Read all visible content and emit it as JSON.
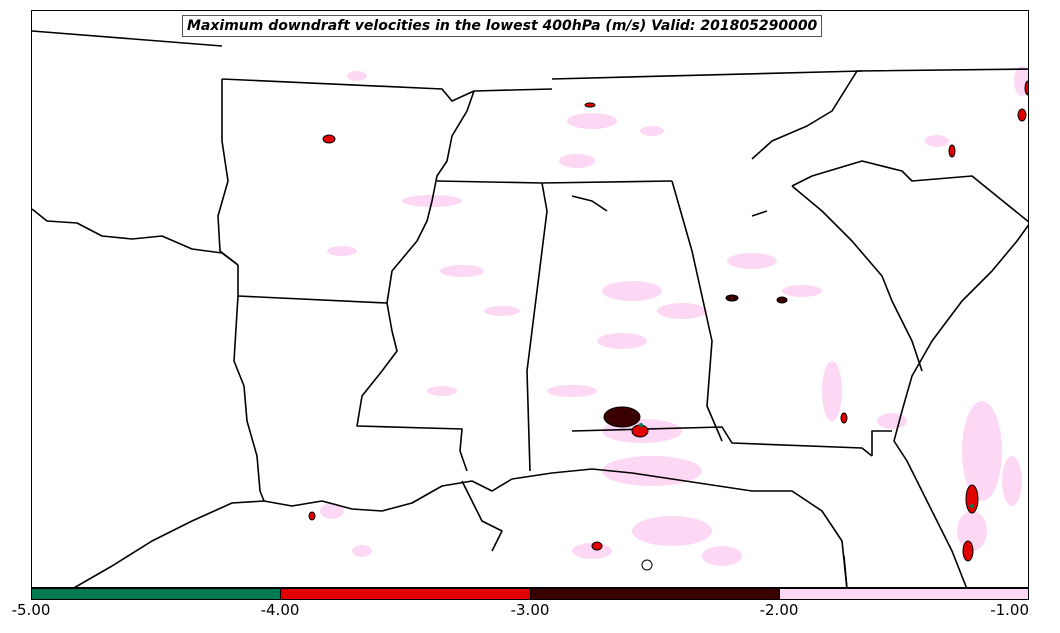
{
  "map": {
    "title": "Maximum downdraft velocities in the lowest 400hPa (m/s) Valid: 201805290000",
    "region": "Southeastern United States",
    "colorbar": {
      "ticks": [
        "-5.00",
        "-4.00",
        "-3.00",
        "-2.00",
        "-1.00"
      ],
      "segments": [
        {
          "range": "-5 to -4",
          "color": "#007a50"
        },
        {
          "range": "-4 to -3",
          "color": "#e00000"
        },
        {
          "range": "-3 to -2",
          "color": "#3a0000"
        },
        {
          "range": "-2 to -1",
          "color": "#fcd8f4"
        }
      ]
    },
    "colors": {
      "boundary": "#000000",
      "weak": "#fcd8f4",
      "moderate": "#e00000",
      "strong": "#3a0000",
      "extreme": "#007a50"
    }
  }
}
